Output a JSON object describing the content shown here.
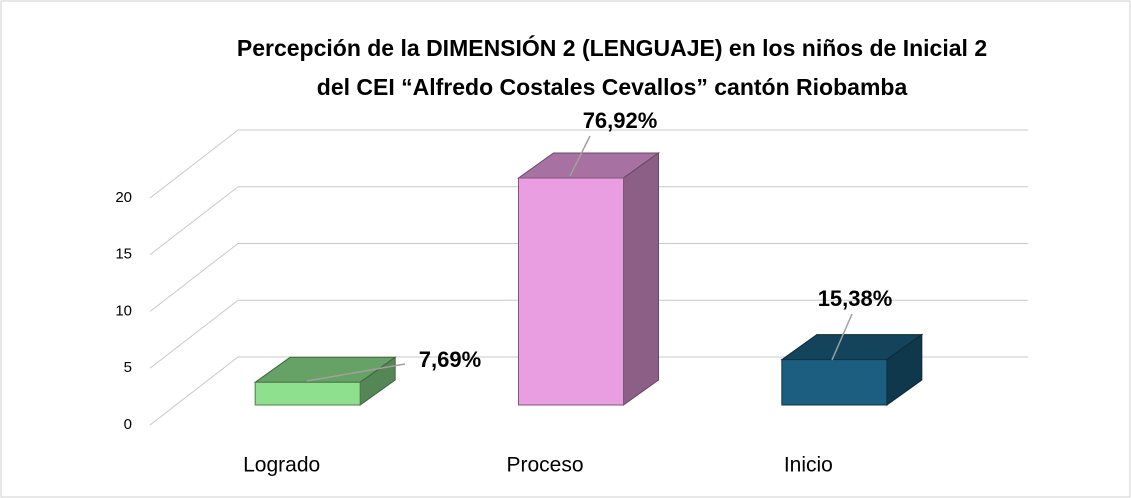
{
  "chart_data": {
    "type": "bar3d",
    "title": [
      "Percepción de la DIMENSIÓN 2 (LENGUAJE) en los niños de Inicial 2",
      "del CEI “Alfredo Costales Cevallos” cantón Riobamba"
    ],
    "categories": [
      "Logrado",
      "Proceso",
      "Inicio"
    ],
    "values": [
      2,
      20,
      4
    ],
    "data_labels": [
      {
        "value": 7.69,
        "label": "7,69%"
      },
      {
        "value": 76.92,
        "label": "76,92%"
      },
      {
        "value": 15.38,
        "label": "15,38%"
      }
    ],
    "colors": [
      "#8ee08e",
      "#e89ee0",
      "#1b5e7f"
    ],
    "ylim": [
      0,
      20
    ],
    "yticks": [
      0,
      5,
      10,
      15,
      20
    ],
    "grid": true
  }
}
